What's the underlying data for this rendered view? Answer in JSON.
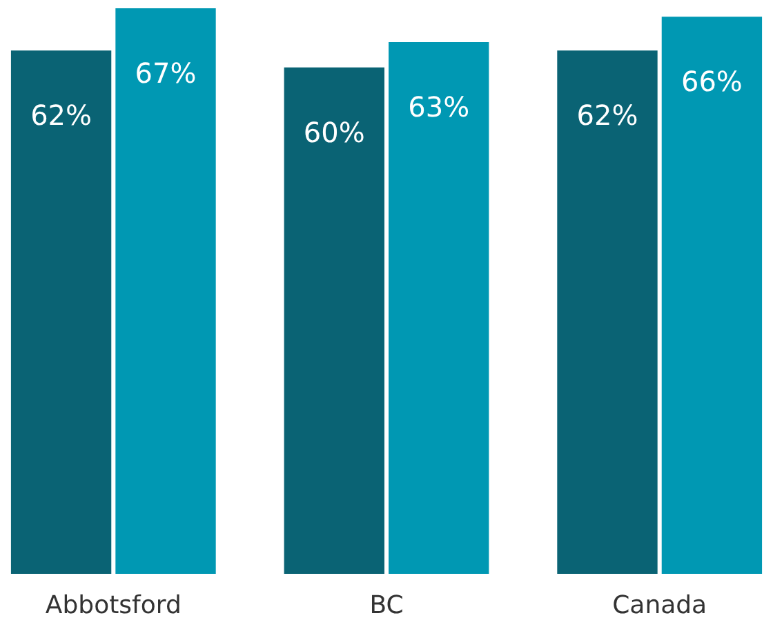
{
  "chart_data": {
    "type": "bar",
    "categories": [
      "Abbotsford",
      "BC",
      "Canada"
    ],
    "series": [
      {
        "color": "#0a6374",
        "values": [
          62,
          60,
          62
        ],
        "value_labels": [
          "62%",
          "60%",
          "62%"
        ]
      },
      {
        "color": "#0098b3",
        "values": [
          67,
          63,
          66
        ],
        "value_labels": [
          "67%",
          "63%",
          "66%"
        ]
      }
    ],
    "legend": false,
    "grid": false
  }
}
